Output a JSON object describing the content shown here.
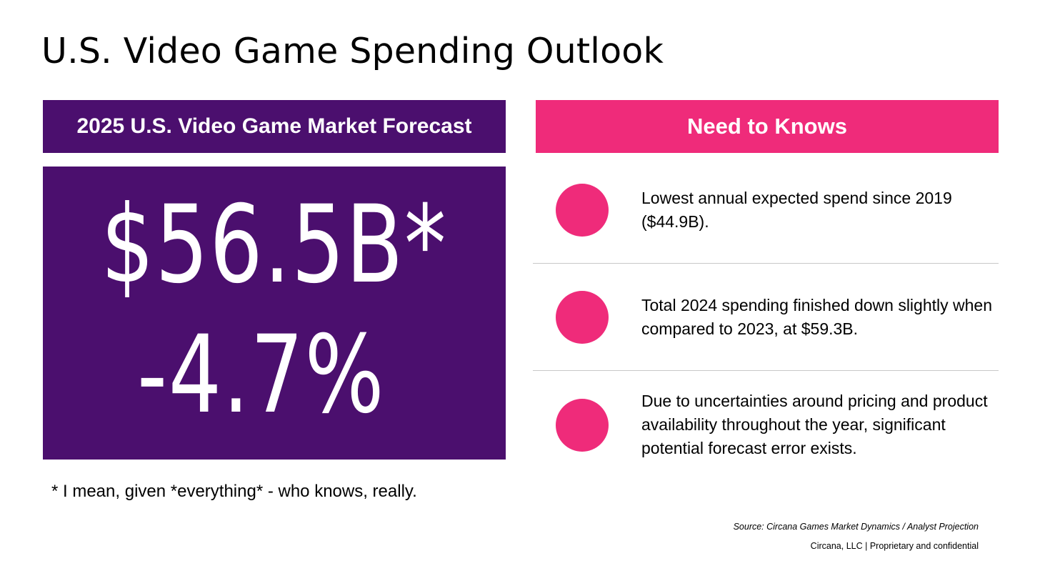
{
  "page": {
    "title": "U.S. Video Game Spending Outlook"
  },
  "forecast": {
    "header": "2025 U.S. Video Game Market Forecast",
    "amount": "$56.5B*",
    "change": "-4.7%",
    "footnote": "* I mean, given *everything* - who knows, really."
  },
  "need_to_knows": {
    "header": "Need to Knows",
    "items": [
      {
        "icon": "pink-circle-bullet-icon",
        "text": "Lowest annual expected spend since 2019 ($44.9B)."
      },
      {
        "icon": "pink-circle-bullet-icon",
        "text": "Total 2024 spending finished down slightly when compared to 2023, at $59.3B."
      },
      {
        "icon": "pink-circle-bullet-icon",
        "text": "Due to uncertainties around pricing and product availability throughout the year, significant potential forecast error exists."
      }
    ]
  },
  "footer": {
    "source": "Source: Circana Games Market Dynamics / Analyst Projection",
    "company": "Circana, LLC  |  Proprietary and confidential"
  },
  "colors": {
    "purple": "#4b0f6e",
    "pink": "#ef2b7a",
    "divider": "#c8c8c8",
    "text": "#000000",
    "background": "#ffffff"
  }
}
